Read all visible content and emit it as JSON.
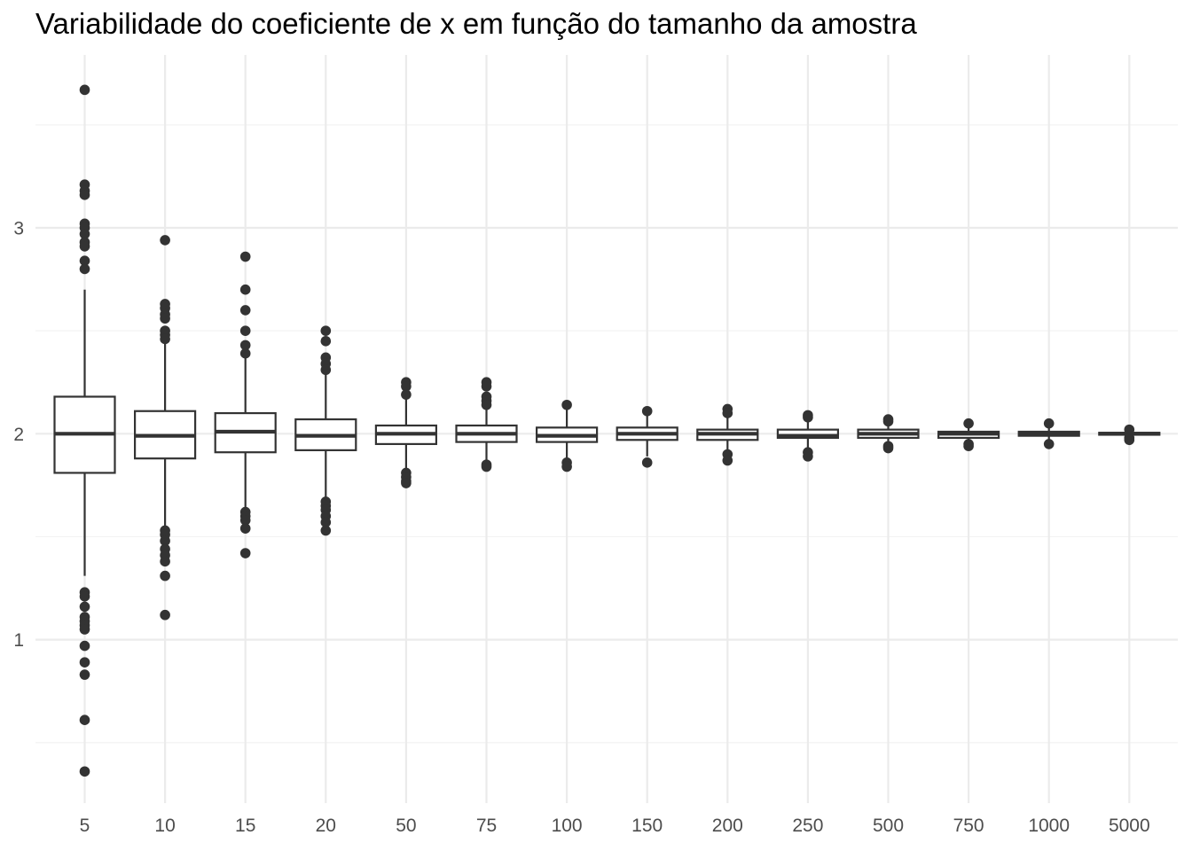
{
  "chart_data": {
    "type": "box",
    "title": "Variabilidade do coeficiente de x em função do tamanho da amostra",
    "xlabel": "",
    "ylabel": "",
    "ylim": [
      0.3,
      3.85
    ],
    "y_ticks": [
      1,
      2,
      3
    ],
    "y_minor_ticks": [
      0.5,
      1.5,
      2.5,
      3.5
    ],
    "grid": true,
    "colors": {
      "box_stroke": "#333333",
      "box_fill": "#ffffff",
      "outlier": "#333333",
      "grid_major": "#ebebeb",
      "grid_minor": "#f3f3f3",
      "tick_text": "#4d4d4d"
    },
    "categories": [
      "5",
      "10",
      "15",
      "20",
      "50",
      "75",
      "100",
      "150",
      "200",
      "250",
      "500",
      "750",
      "1000",
      "5000"
    ],
    "boxes": [
      {
        "category": "5",
        "whisker_low": 1.31,
        "q1": 1.81,
        "median": 2.0,
        "q3": 2.18,
        "whisker_high": 2.7,
        "outliers": [
          3.67,
          3.21,
          3.18,
          3.16,
          3.02,
          3.0,
          2.97,
          2.93,
          2.91,
          2.84,
          2.8,
          1.23,
          1.21,
          1.16,
          1.11,
          1.09,
          1.07,
          1.05,
          0.97,
          0.89,
          0.83,
          0.61,
          0.36
        ]
      },
      {
        "category": "10",
        "whisker_low": 1.55,
        "q1": 1.88,
        "median": 1.99,
        "q3": 2.11,
        "whisker_high": 2.44,
        "outliers": [
          2.94,
          2.63,
          2.61,
          2.58,
          2.56,
          2.5,
          2.48,
          2.46,
          1.53,
          1.51,
          1.48,
          1.44,
          1.41,
          1.38,
          1.31,
          1.12
        ]
      },
      {
        "category": "15",
        "whisker_low": 1.64,
        "q1": 1.91,
        "median": 2.01,
        "q3": 2.1,
        "whisker_high": 2.37,
        "outliers": [
          2.86,
          2.7,
          2.6,
          2.5,
          2.43,
          2.39,
          1.62,
          1.6,
          1.58,
          1.54,
          1.42
        ]
      },
      {
        "category": "20",
        "whisker_low": 1.69,
        "q1": 1.92,
        "median": 1.99,
        "q3": 2.07,
        "whisker_high": 2.29,
        "outliers": [
          2.5,
          2.45,
          2.37,
          2.34,
          2.31,
          1.67,
          1.65,
          1.63,
          1.6,
          1.57,
          1.53
        ]
      },
      {
        "category": "50",
        "whisker_low": 1.82,
        "q1": 1.95,
        "median": 2.0,
        "q3": 2.04,
        "whisker_high": 2.17,
        "outliers": [
          2.25,
          2.23,
          2.19,
          1.81,
          1.79,
          1.77,
          1.76
        ]
      },
      {
        "category": "75",
        "whisker_low": 1.86,
        "q1": 1.96,
        "median": 2.0,
        "q3": 2.04,
        "whisker_high": 2.14,
        "outliers": [
          2.25,
          2.23,
          2.18,
          2.16,
          2.14,
          1.85,
          1.84
        ]
      },
      {
        "category": "100",
        "whisker_low": 1.87,
        "q1": 1.96,
        "median": 1.99,
        "q3": 2.03,
        "whisker_high": 2.12,
        "outliers": [
          2.14,
          1.86,
          1.84
        ]
      },
      {
        "category": "150",
        "whisker_low": 1.89,
        "q1": 1.97,
        "median": 2.0,
        "q3": 2.03,
        "whisker_high": 2.09,
        "outliers": [
          2.11,
          1.86
        ]
      },
      {
        "category": "200",
        "whisker_low": 1.91,
        "q1": 1.97,
        "median": 2.0,
        "q3": 2.02,
        "whisker_high": 2.08,
        "outliers": [
          2.12,
          2.1,
          1.9,
          1.87
        ]
      },
      {
        "category": "250",
        "whisker_low": 1.93,
        "q1": 1.98,
        "median": 1.99,
        "q3": 2.02,
        "whisker_high": 2.06,
        "outliers": [
          2.09,
          2.08,
          1.91,
          1.89
        ]
      },
      {
        "category": "500",
        "whisker_low": 1.95,
        "q1": 1.98,
        "median": 2.0,
        "q3": 2.02,
        "whisker_high": 2.05,
        "outliers": [
          2.07,
          2.06,
          1.94,
          1.93
        ]
      },
      {
        "category": "750",
        "whisker_low": 1.96,
        "q1": 1.98,
        "median": 2.0,
        "q3": 2.01,
        "whisker_high": 2.04,
        "outliers": [
          2.05,
          1.95,
          1.94
        ]
      },
      {
        "category": "1000",
        "whisker_low": 1.96,
        "q1": 1.99,
        "median": 2.0,
        "q3": 2.01,
        "whisker_high": 2.04,
        "outliers": [
          2.05,
          1.95
        ]
      },
      {
        "category": "5000",
        "whisker_low": 1.98,
        "q1": 1.995,
        "median": 2.0,
        "q3": 2.005,
        "whisker_high": 2.01,
        "outliers": [
          2.02,
          1.98,
          1.97
        ]
      }
    ]
  }
}
